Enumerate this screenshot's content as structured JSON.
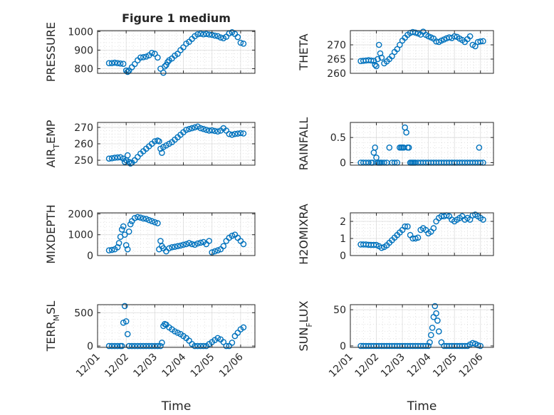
{
  "chart_data": [
    {
      "id": "pressure",
      "type": "scatter",
      "title": "Figure 1 medium",
      "ylabel": "PRESSURE",
      "ylim": [
        775,
        1005
      ],
      "yticks": [
        800,
        900,
        1000
      ],
      "xlim": [
        0,
        5.5
      ],
      "xtick_labels": [],
      "grid": true,
      "marker": "circle",
      "color": "#0072bd",
      "x": [
        0.4,
        0.5,
        0.6,
        0.7,
        0.8,
        0.9,
        1.0,
        1.05,
        1.1,
        1.2,
        1.3,
        1.4,
        1.5,
        1.6,
        1.7,
        1.8,
        1.9,
        2.0,
        2.1,
        2.2,
        2.3,
        2.35,
        2.4,
        2.45,
        2.5,
        2.6,
        2.7,
        2.8,
        2.9,
        3.0,
        3.1,
        3.2,
        3.3,
        3.4,
        3.5,
        3.6,
        3.7,
        3.8,
        3.9,
        4.0,
        4.1,
        4.2,
        4.3,
        4.4,
        4.5,
        4.6,
        4.7,
        4.8,
        4.9,
        5.0,
        5.1
      ],
      "y": [
        830,
        830,
        832,
        830,
        828,
        826,
        790,
        783,
        790,
        808,
        825,
        845,
        860,
        862,
        865,
        872,
        885,
        880,
        860,
        800,
        778,
        812,
        820,
        835,
        845,
        855,
        870,
        880,
        900,
        915,
        935,
        945,
        960,
        975,
        985,
        988,
        985,
        987,
        984,
        982,
        978,
        975,
        968,
        964,
        972,
        990,
        996,
        987,
        970,
        940,
        935
      ]
    },
    {
      "id": "theta",
      "type": "scatter",
      "title": "",
      "ylabel": "THETA",
      "ylim": [
        260,
        275
      ],
      "yticks": [
        260,
        265,
        270
      ],
      "xlim": [
        0,
        5.5
      ],
      "xtick_labels": [],
      "grid": true,
      "marker": "circle",
      "color": "#0072bd",
      "x": [
        0.4,
        0.5,
        0.6,
        0.7,
        0.8,
        0.9,
        0.95,
        1.0,
        1.05,
        1.1,
        1.15,
        1.2,
        1.3,
        1.4,
        1.5,
        1.6,
        1.7,
        1.8,
        1.9,
        2.0,
        2.1,
        2.2,
        2.3,
        2.4,
        2.5,
        2.6,
        2.7,
        2.8,
        2.9,
        3.0,
        3.1,
        3.2,
        3.3,
        3.4,
        3.5,
        3.6,
        3.7,
        3.8,
        3.9,
        4.0,
        4.1,
        4.2,
        4.3,
        4.4,
        4.5,
        4.6,
        4.7,
        4.8,
        4.9,
        5.0,
        5.1
      ],
      "y": [
        264.3,
        264.4,
        264.5,
        264.6,
        264.5,
        264.4,
        263,
        262.5,
        265,
        270,
        267,
        265.5,
        263.5,
        264.2,
        265,
        266,
        267.5,
        268.5,
        270,
        271.5,
        272.5,
        273.5,
        274.2,
        274.5,
        274.3,
        274,
        273.6,
        274.6,
        273.5,
        273,
        272.6,
        272.2,
        271.2,
        271,
        271.5,
        271.9,
        272.3,
        272.6,
        272.4,
        273,
        272.8,
        272.2,
        271.7,
        271,
        272,
        273,
        270,
        269.5,
        271,
        271.2,
        271.3
      ]
    },
    {
      "id": "air_temp",
      "type": "scatter",
      "title": "",
      "ylabel": "AIR_TEMP",
      "ylabel_main": "AIR",
      "ylabel_sub": "T",
      "ylabel_tail": "EMP",
      "ylim": [
        247,
        273
      ],
      "yticks": [
        250,
        260,
        270
      ],
      "xlim": [
        0,
        5.5
      ],
      "xtick_labels": [],
      "grid": true,
      "marker": "circle",
      "color": "#0072bd",
      "x": [
        0.4,
        0.5,
        0.6,
        0.7,
        0.8,
        0.9,
        0.95,
        1.0,
        1.05,
        1.1,
        1.15,
        1.2,
        1.3,
        1.4,
        1.5,
        1.6,
        1.7,
        1.8,
        1.9,
        2.0,
        2.1,
        2.15,
        2.2,
        2.25,
        2.3,
        2.4,
        2.5,
        2.6,
        2.7,
        2.8,
        2.9,
        3.0,
        3.1,
        3.2,
        3.3,
        3.4,
        3.5,
        3.6,
        3.7,
        3.8,
        3.9,
        4.0,
        4.1,
        4.2,
        4.3,
        4.4,
        4.5,
        4.6,
        4.7,
        4.8,
        4.9,
        5.0,
        5.1
      ],
      "y": [
        251,
        251.2,
        251.5,
        251.7,
        251.8,
        251,
        249,
        250,
        253,
        249,
        248,
        248.5,
        250,
        252,
        254,
        255.5,
        257,
        258.5,
        260,
        261.5,
        262,
        261.5,
        257,
        254.5,
        258,
        259,
        260,
        261,
        262.5,
        264,
        265.5,
        267,
        268.5,
        269,
        269.5,
        270,
        270.5,
        269.5,
        269,
        268.5,
        268,
        268.2,
        267.8,
        267.5,
        268,
        269.5,
        268,
        266,
        265.5,
        266,
        266.2,
        266.5,
        266.3
      ]
    },
    {
      "id": "rainfall",
      "type": "scatter",
      "title": "",
      "ylabel": "RAINFALL",
      "ylim": [
        -0.05,
        0.8
      ],
      "yticks": [
        0,
        0.5
      ],
      "xlim": [
        0,
        5.5
      ],
      "xtick_labels": [],
      "grid": true,
      "marker": "circle",
      "color": "#0072bd",
      "x": [
        0.4,
        0.5,
        0.6,
        0.7,
        0.8,
        0.85,
        0.9,
        0.95,
        1.0,
        1.05,
        1.1,
        1.15,
        1.2,
        1.3,
        1.4,
        1.5,
        1.6,
        1.7,
        1.8,
        1.9,
        1.95,
        2.0,
        2.05,
        2.1,
        2.15,
        2.2,
        2.25,
        2.3,
        2.35,
        2.4,
        2.45,
        2.5,
        2.6,
        2.7,
        2.8,
        2.9,
        3.0,
        3.1,
        3.2,
        3.3,
        3.4,
        3.5,
        3.6,
        3.7,
        3.8,
        3.9,
        4.0,
        4.1,
        4.2,
        4.3,
        4.4,
        4.5,
        4.6,
        4.7,
        4.8,
        4.9,
        4.95,
        5.0,
        5.1
      ],
      "y": [
        0,
        0,
        0,
        0,
        0,
        0,
        0.2,
        0.3,
        0.1,
        0,
        0,
        0,
        0,
        0,
        0,
        0.3,
        0,
        0,
        0,
        0.3,
        0.3,
        0.3,
        0.3,
        0.7,
        0.6,
        0.3,
        0.3,
        0,
        0,
        0,
        0,
        0,
        0,
        0,
        0,
        0,
        0,
        0,
        0,
        0,
        0,
        0,
        0,
        0,
        0,
        0,
        0,
        0,
        0,
        0,
        0,
        0,
        0,
        0,
        0,
        0,
        0.3,
        0,
        0
      ]
    },
    {
      "id": "mixdepth",
      "type": "scatter",
      "title": "",
      "ylabel": "MIXDEPTH",
      "ylim": [
        0,
        2050
      ],
      "yticks": [
        0,
        1000,
        2000
      ],
      "xlim": [
        0,
        5.5
      ],
      "xtick_labels": [],
      "grid": true,
      "marker": "circle",
      "color": "#0072bd",
      "x": [
        0.4,
        0.5,
        0.6,
        0.7,
        0.75,
        0.8,
        0.85,
        0.9,
        0.95,
        1.0,
        1.05,
        1.1,
        1.15,
        1.2,
        1.3,
        1.4,
        1.5,
        1.6,
        1.7,
        1.8,
        1.9,
        2.0,
        2.1,
        2.15,
        2.2,
        2.25,
        2.3,
        2.4,
        2.5,
        2.6,
        2.7,
        2.8,
        2.9,
        3.0,
        3.1,
        3.2,
        3.3,
        3.4,
        3.5,
        3.6,
        3.7,
        3.8,
        3.9,
        4.0,
        4.1,
        4.2,
        4.3,
        4.4,
        4.5,
        4.6,
        4.7,
        4.8,
        4.9,
        5.0,
        5.1
      ],
      "y": [
        250,
        270,
        300,
        400,
        600,
        900,
        1250,
        1400,
        1000,
        500,
        300,
        1150,
        1500,
        1650,
        1800,
        1850,
        1820,
        1780,
        1760,
        1700,
        1650,
        1600,
        1550,
        300,
        700,
        450,
        350,
        200,
        350,
        400,
        420,
        450,
        480,
        520,
        550,
        600,
        550,
        520,
        580,
        620,
        650,
        550,
        700,
        150,
        200,
        250,
        300,
        450,
        700,
        850,
        950,
        1000,
        850,
        700,
        550
      ]
    },
    {
      "id": "h2omixra",
      "type": "scatter",
      "title": "",
      "ylabel": "H2OMIXRA",
      "ylim": [
        0,
        2.5
      ],
      "yticks": [
        0,
        1,
        2
      ],
      "xlim": [
        0,
        5.5
      ],
      "xtick_labels": [],
      "grid": true,
      "marker": "circle",
      "color": "#0072bd",
      "x": [
        0.4,
        0.5,
        0.6,
        0.7,
        0.8,
        0.9,
        1.0,
        1.1,
        1.2,
        1.3,
        1.4,
        1.5,
        1.6,
        1.7,
        1.8,
        1.9,
        2.0,
        2.1,
        2.2,
        2.3,
        2.4,
        2.5,
        2.6,
        2.7,
        2.8,
        2.9,
        3.0,
        3.1,
        3.2,
        3.3,
        3.4,
        3.5,
        3.6,
        3.7,
        3.8,
        3.9,
        4.0,
        4.1,
        4.2,
        4.3,
        4.4,
        4.5,
        4.6,
        4.7,
        4.8,
        4.9,
        5.0,
        5.1
      ],
      "y": [
        0.65,
        0.65,
        0.65,
        0.63,
        0.62,
        0.62,
        0.62,
        0.55,
        0.45,
        0.5,
        0.6,
        0.75,
        0.9,
        1.05,
        1.2,
        1.35,
        1.5,
        1.7,
        1.7,
        1.2,
        1.0,
        1.0,
        1.05,
        1.5,
        1.6,
        1.5,
        1.3,
        1.4,
        1.6,
        2.0,
        2.2,
        2.3,
        2.3,
        2.35,
        2.3,
        2.1,
        2.0,
        2.1,
        2.2,
        2.3,
        2.1,
        2.2,
        2.1,
        2.35,
        2.4,
        2.3,
        2.2,
        2.1
      ]
    },
    {
      "id": "terr_msl",
      "type": "scatter",
      "title": "",
      "ylabel": "TERR_MSL",
      "ylabel_main": "TERR",
      "ylabel_sub": "M",
      "ylabel_tail": "SL",
      "ylim": [
        -20,
        620
      ],
      "yticks": [
        0,
        500
      ],
      "xlim": [
        0,
        5.5
      ],
      "xtick_labels": [
        "12/01",
        "12/02",
        "12/03",
        "12/04",
        "12/05",
        "12/06"
      ],
      "xlabel": "Time",
      "grid": true,
      "marker": "circle",
      "color": "#0072bd",
      "x": [
        0.4,
        0.5,
        0.6,
        0.7,
        0.8,
        0.85,
        0.9,
        0.95,
        1.0,
        1.05,
        1.1,
        1.2,
        1.3,
        1.4,
        1.5,
        1.6,
        1.7,
        1.8,
        1.9,
        2.0,
        2.1,
        2.2,
        2.25,
        2.3,
        2.35,
        2.4,
        2.5,
        2.6,
        2.7,
        2.8,
        2.9,
        3.0,
        3.1,
        3.2,
        3.3,
        3.4,
        3.5,
        3.6,
        3.7,
        3.8,
        3.9,
        4.0,
        4.1,
        4.2,
        4.3,
        4.4,
        4.5,
        4.6,
        4.7,
        4.8,
        4.9,
        5.0,
        5.1
      ],
      "y": [
        0,
        0,
        0,
        0,
        0,
        0,
        350,
        600,
        370,
        180,
        0,
        0,
        0,
        0,
        0,
        0,
        0,
        0,
        0,
        0,
        0,
        0,
        50,
        300,
        330,
        320,
        280,
        250,
        220,
        200,
        180,
        150,
        120,
        80,
        30,
        0,
        0,
        0,
        0,
        0,
        30,
        60,
        90,
        120,
        100,
        60,
        0,
        0,
        50,
        150,
        200,
        250,
        280
      ]
    },
    {
      "id": "sun_flux",
      "type": "scatter",
      "title": "",
      "ylabel": "SUN_FLUX",
      "ylabel_main": "SUN",
      "ylabel_sub": "F",
      "ylabel_tail": "LUX",
      "ylim": [
        -2,
        57
      ],
      "yticks": [
        0,
        50
      ],
      "xlim": [
        0,
        5.5
      ],
      "xtick_labels": [
        "12/01",
        "12/02",
        "12/03",
        "12/04",
        "12/05",
        "12/06"
      ],
      "xlabel": "Time",
      "grid": true,
      "marker": "circle",
      "color": "#0072bd",
      "x": [
        0.4,
        0.5,
        0.6,
        0.7,
        0.8,
        0.9,
        1.0,
        1.1,
        1.2,
        1.3,
        1.4,
        1.5,
        1.6,
        1.7,
        1.8,
        1.9,
        2.0,
        2.1,
        2.2,
        2.3,
        2.4,
        2.5,
        2.6,
        2.7,
        2.8,
        2.9,
        3.0,
        3.05,
        3.1,
        3.15,
        3.2,
        3.25,
        3.3,
        3.35,
        3.4,
        3.5,
        3.6,
        3.7,
        3.8,
        3.9,
        4.0,
        4.1,
        4.2,
        4.3,
        4.4,
        4.5,
        4.6,
        4.7,
        4.8,
        4.9,
        5.0
      ],
      "y": [
        0,
        0,
        0,
        0,
        0,
        0,
        0,
        0,
        0,
        0,
        0,
        0,
        0,
        0,
        0,
        0,
        0,
        0,
        0,
        0,
        0,
        0,
        0,
        0,
        0,
        0,
        0,
        5,
        15,
        25,
        40,
        55,
        45,
        35,
        20,
        5,
        0,
        0,
        0,
        0,
        0,
        0,
        0,
        0,
        0,
        0,
        2,
        4,
        3,
        1,
        0
      ]
    }
  ]
}
